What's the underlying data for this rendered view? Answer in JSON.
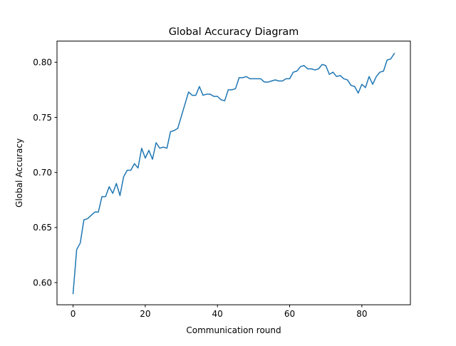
{
  "chart_data": {
    "type": "line",
    "title": "Global Accuracy Diagram",
    "xlabel": "Communication round",
    "ylabel": "Global Accuracy",
    "xlim": [
      -4.45,
      93.45
    ],
    "ylim": [
      0.5799,
      0.8192
    ],
    "xticks": [
      0,
      20,
      40,
      60,
      80
    ],
    "xtick_labels": [
      "0",
      "20",
      "40",
      "60",
      "80"
    ],
    "yticks": [
      0.6,
      0.65,
      0.7,
      0.75,
      0.8
    ],
    "ytick_labels": [
      "0.60",
      "0.65",
      "0.70",
      "0.75",
      "0.80"
    ],
    "grid": false,
    "line_color": "#1f77b4",
    "series": [
      {
        "x": [
          0,
          1,
          2,
          3,
          4,
          5,
          6,
          7,
          8,
          9,
          10,
          11,
          12,
          13,
          14,
          15,
          16,
          17,
          18,
          19,
          20,
          21,
          22,
          23,
          24,
          25,
          26,
          27,
          28,
          29,
          30,
          31,
          32,
          33,
          34,
          35,
          36,
          37,
          38,
          39,
          40,
          41,
          42,
          43,
          44,
          45,
          46,
          47,
          48,
          49,
          50,
          51,
          52,
          53,
          54,
          55,
          56,
          57,
          58,
          59,
          60,
          61,
          62,
          63,
          64,
          65,
          66,
          67,
          68,
          69,
          70,
          71,
          72,
          73,
          74,
          75,
          76,
          77,
          78,
          79,
          80,
          81,
          82,
          83,
          84,
          85,
          86,
          87,
          88,
          89
        ],
        "values": [
          0.59,
          0.63,
          0.636,
          0.657,
          0.658,
          0.661,
          0.664,
          0.664,
          0.678,
          0.678,
          0.687,
          0.681,
          0.69,
          0.679,
          0.696,
          0.702,
          0.702,
          0.708,
          0.704,
          0.722,
          0.713,
          0.72,
          0.712,
          0.727,
          0.722,
          0.723,
          0.722,
          0.737,
          0.738,
          0.74,
          0.751,
          0.762,
          0.773,
          0.77,
          0.77,
          0.778,
          0.77,
          0.771,
          0.771,
          0.769,
          0.769,
          0.766,
          0.765,
          0.775,
          0.775,
          0.776,
          0.786,
          0.786,
          0.787,
          0.785,
          0.785,
          0.785,
          0.785,
          0.782,
          0.782,
          0.783,
          0.784,
          0.783,
          0.783,
          0.785,
          0.785,
          0.791,
          0.792,
          0.796,
          0.797,
          0.794,
          0.794,
          0.793,
          0.794,
          0.798,
          0.797,
          0.789,
          0.791,
          0.787,
          0.788,
          0.785,
          0.784,
          0.779,
          0.778,
          0.772,
          0.78,
          0.777,
          0.787,
          0.78,
          0.787,
          0.791,
          0.792,
          0.802,
          0.803,
          0.808
        ]
      }
    ]
  }
}
